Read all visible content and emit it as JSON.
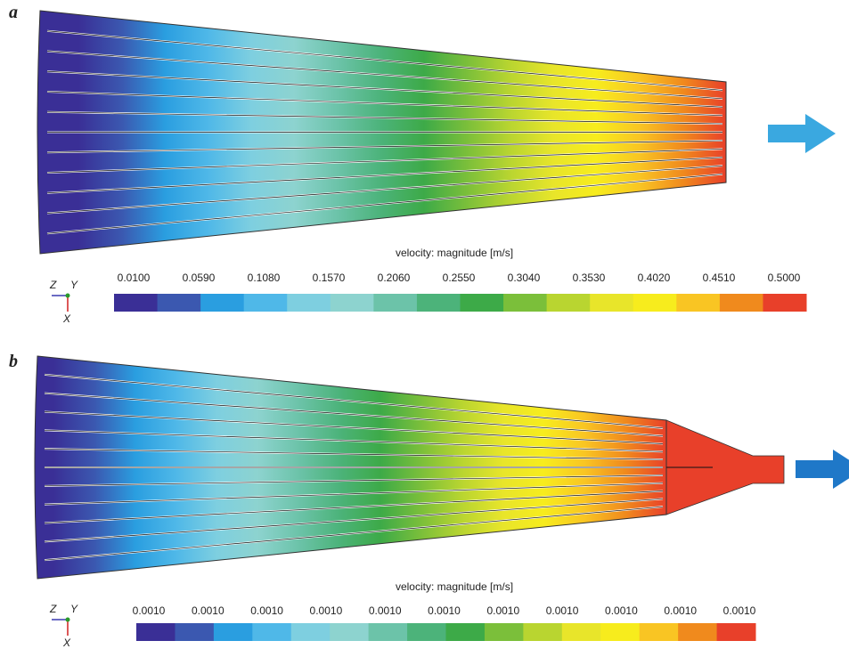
{
  "panels": [
    {
      "label": "a",
      "colorbar": {
        "title": "velocity: magnitude [m/s]",
        "ticks": [
          "0.0100",
          "0.0590",
          "0.1080",
          "0.1570",
          "0.2060",
          "0.2550",
          "0.3040",
          "0.3530",
          "0.4020",
          "0.4510",
          "0.5000"
        ]
      },
      "axes": {
        "z": "Z",
        "y": "Y",
        "x": "X"
      }
    },
    {
      "label": "b",
      "colorbar": {
        "title": "velocity: magnitude [m/s]",
        "ticks": [
          "0.0010",
          "0.0010",
          "0.0010",
          "0.0010",
          "0.0010",
          "0.0010",
          "0.0010",
          "0.0010",
          "0.0010",
          "0.0010",
          "0.0010"
        ]
      },
      "axes": {
        "z": "Z",
        "y": "Y",
        "x": "X"
      }
    }
  ],
  "colors": [
    "#3a2f96",
    "#3b58b0",
    "#2a9ee0",
    "#4fb8e8",
    "#7ecfe0",
    "#8dd3cf",
    "#6cc3a9",
    "#4cb37a",
    "#3daa48",
    "#7bbf3a",
    "#b9d530",
    "#e8e52a",
    "#f7ec1d",
    "#f9c523",
    "#f08a1d",
    "#e8402a"
  ]
}
